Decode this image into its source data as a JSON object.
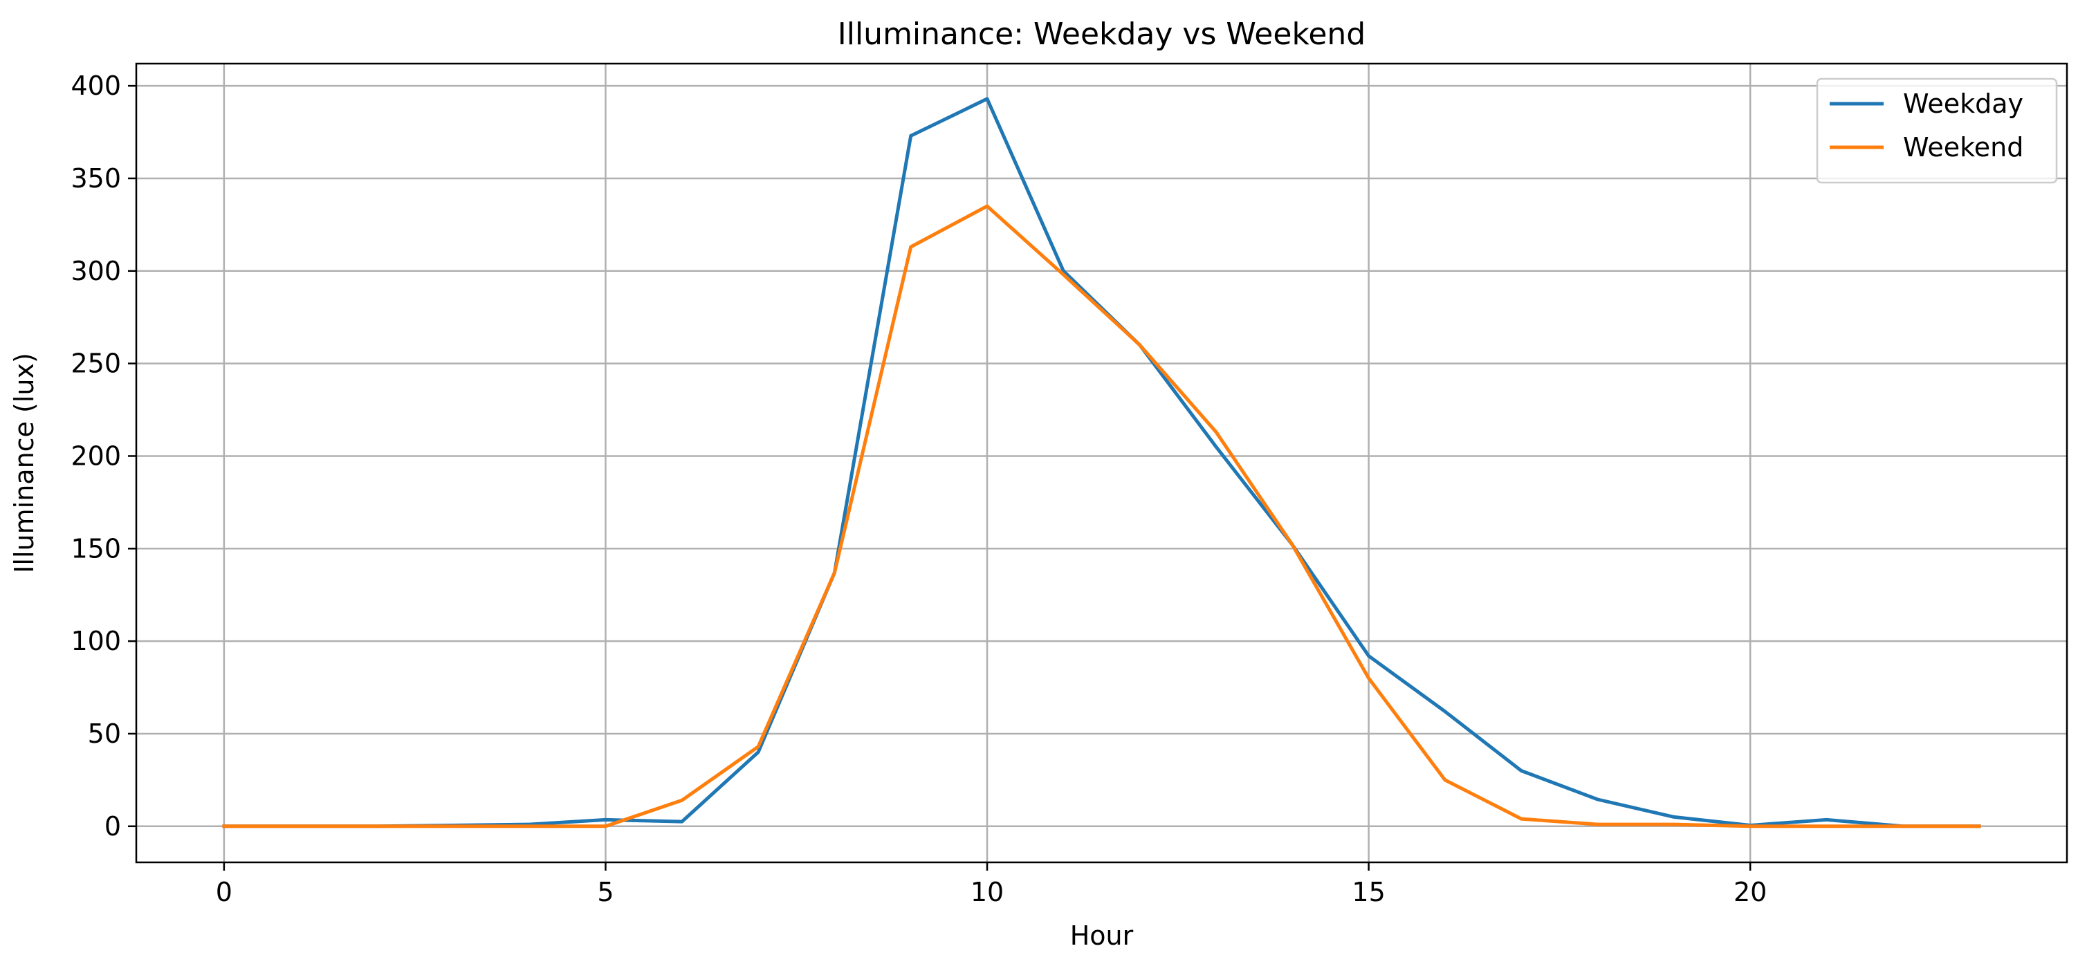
{
  "chart_data": {
    "type": "line",
    "title": "Illuminance: Weekday vs Weekend",
    "xlabel": "Hour",
    "ylabel": "Illuminance (lux)",
    "xlim": [
      -1.15,
      24.15
    ],
    "ylim": [
      -19.5,
      412
    ],
    "xticks": [
      0,
      5,
      10,
      15,
      20
    ],
    "yticks": [
      0,
      50,
      100,
      150,
      200,
      250,
      300,
      350,
      400
    ],
    "grid": true,
    "legend_position": "top-right",
    "x": [
      0,
      1,
      2,
      3,
      4,
      5,
      6,
      7,
      8,
      9,
      10,
      11,
      12,
      13,
      14,
      15,
      16,
      17,
      18,
      19,
      20,
      21,
      22,
      23
    ],
    "series": [
      {
        "name": "Weekday",
        "color": "#1f77b4",
        "values": [
          0,
          0,
          0,
          0.5,
          1,
          3.5,
          2.5,
          40,
          137,
          373,
          393,
          300,
          260,
          205,
          152,
          92,
          62,
          30,
          14.5,
          5,
          0.5,
          3.5,
          0,
          0
        ]
      },
      {
        "name": "Weekend",
        "color": "#ff7f0e",
        "values": [
          0,
          0,
          0,
          0,
          0,
          0,
          14,
          43,
          137,
          313,
          335,
          298,
          260,
          213,
          152,
          80,
          25,
          4,
          1,
          1,
          0,
          0,
          0,
          0
        ]
      }
    ]
  }
}
